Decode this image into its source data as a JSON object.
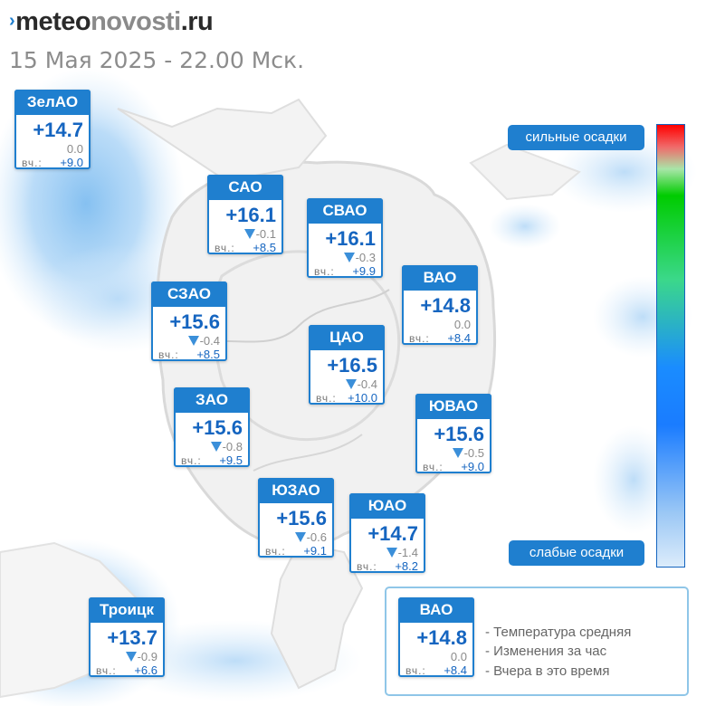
{
  "site": {
    "logo_mark": "›",
    "logo_part1": "meteo",
    "logo_part2": "novosti",
    "logo_part3": ".ru"
  },
  "date_line": "15 Мая 2025 - 22.00 Мск.",
  "districts": [
    {
      "name": "ЗелАО",
      "temp": "+14.7",
      "change": "0.0",
      "yesterday_label": "вч.:",
      "yesterday": "+9.0",
      "dir": "none"
    },
    {
      "name": "САО",
      "temp": "+16.1",
      "change": "-0.1",
      "yesterday_label": "вч.:",
      "yesterday": "+8.5",
      "dir": "down"
    },
    {
      "name": "СВАО",
      "temp": "+16.1",
      "change": "-0.3",
      "yesterday_label": "вч.:",
      "yesterday": "+9.9",
      "dir": "down"
    },
    {
      "name": "ВАО",
      "temp": "+14.8",
      "change": "0.0",
      "yesterday_label": "вч.:",
      "yesterday": "+8.4",
      "dir": "none"
    },
    {
      "name": "СЗАО",
      "temp": "+15.6",
      "change": "-0.4",
      "yesterday_label": "вч.:",
      "yesterday": "+8.5",
      "dir": "down"
    },
    {
      "name": "ЦАО",
      "temp": "+16.5",
      "change": "-0.4",
      "yesterday_label": "вч.:",
      "yesterday": "+10.0",
      "dir": "down"
    },
    {
      "name": "ЗАО",
      "temp": "+15.6",
      "change": "-0.8",
      "yesterday_label": "вч.:",
      "yesterday": "+9.5",
      "dir": "down"
    },
    {
      "name": "ЮВАО",
      "temp": "+15.6",
      "change": "-0.5",
      "yesterday_label": "вч.:",
      "yesterday": "+9.0",
      "dir": "down"
    },
    {
      "name": "ЮЗАО",
      "temp": "+15.6",
      "change": "-0.6",
      "yesterday_label": "вч.:",
      "yesterday": "+9.1",
      "dir": "down"
    },
    {
      "name": "ЮАО",
      "temp": "+14.7",
      "change": "-1.4",
      "yesterday_label": "вч.:",
      "yesterday": "+8.2",
      "dir": "down"
    },
    {
      "name": "Троицк",
      "temp": "+13.7",
      "change": "-0.9",
      "yesterday_label": "вч.:",
      "yesterday": "+6.6",
      "dir": "down"
    }
  ],
  "precip_scale": {
    "top_label": "сильные осадки",
    "bottom_label": "слабые осадки",
    "colors": [
      "#ff0000",
      "#00cc00",
      "#1a8cff",
      "#dcecfb"
    ]
  },
  "legend": {
    "example": {
      "name": "ВАО",
      "temp": "+14.8",
      "change": "0.0",
      "yesterday_label": "вч.:",
      "yesterday": "+8.4",
      "dir": "none"
    },
    "lines": [
      "- Температура средняя",
      "- Изменения за час",
      "- Вчера в это время"
    ]
  },
  "colors": {
    "accent": "#1f7fcf",
    "temp_text": "#1565c0",
    "precip_light": "#b9dcf7"
  }
}
